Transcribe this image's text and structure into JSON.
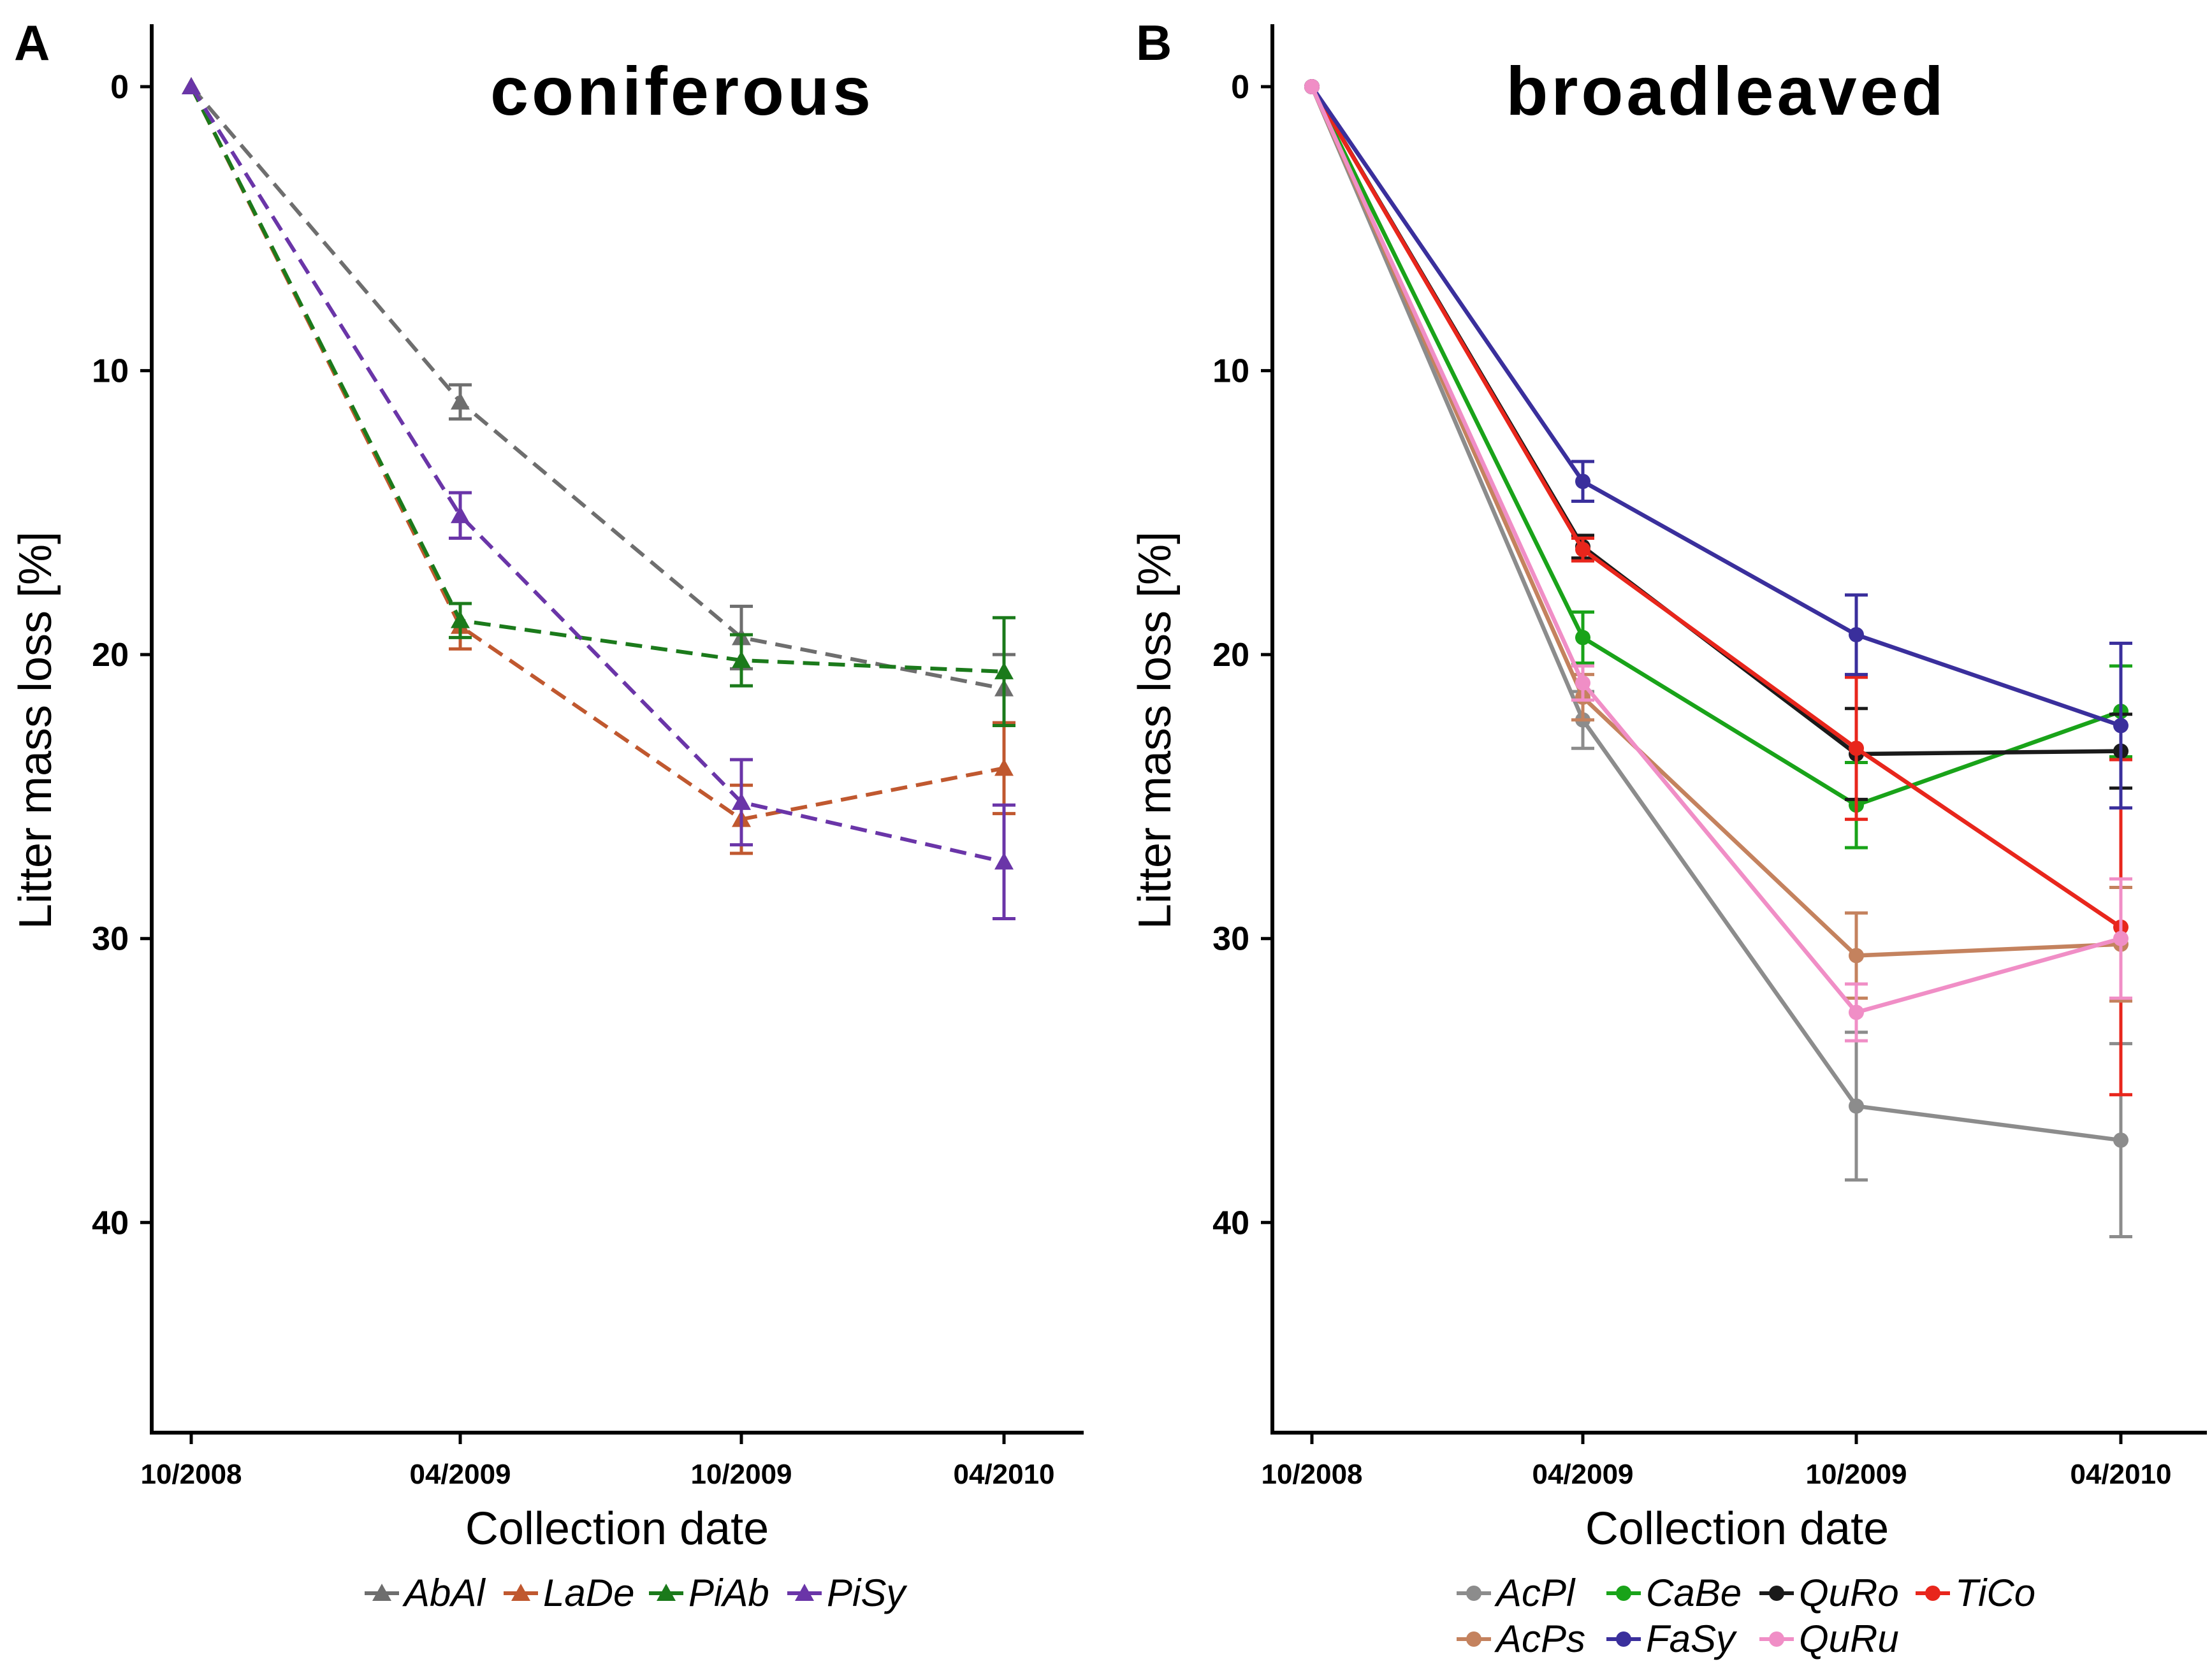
{
  "chart_data": [
    {
      "type": "line",
      "panel_label": "A",
      "title": "coniferous",
      "xlabel": "Collection date",
      "ylabel": "Litter mass loss [%]",
      "categories": [
        "10/2008",
        "04/2009",
        "10/2009",
        "04/2010"
      ],
      "yticks": [
        0,
        10,
        20,
        30,
        40
      ],
      "ylim": [
        -2.2,
        47.4
      ],
      "y_inverted": true,
      "grid": false,
      "marker": "triangle",
      "line_style": "dashed",
      "legend_position": "bottom",
      "series": [
        {
          "name": "AbAl",
          "color": "#6e6e6e",
          "values": [
            0,
            11.1,
            19.4,
            21.2
          ],
          "errors": [
            0,
            0.6,
            1.1,
            1.2
          ]
        },
        {
          "name": "LaDe",
          "color": "#c0582f",
          "values": [
            0,
            19.0,
            25.8,
            24.0
          ],
          "errors": [
            0,
            0.8,
            1.2,
            1.6
          ]
        },
        {
          "name": "PiAb",
          "color": "#1b7a1b",
          "values": [
            0,
            18.8,
            20.2,
            20.6
          ],
          "errors": [
            0,
            0.6,
            0.9,
            1.9
          ]
        },
        {
          "name": "PiSy",
          "color": "#6a35a8",
          "values": [
            0,
            15.1,
            25.2,
            27.3
          ],
          "errors": [
            0,
            0.8,
            1.5,
            2.0
          ]
        }
      ]
    },
    {
      "type": "line",
      "panel_label": "B",
      "title": "broadleaved",
      "xlabel": "Collection date",
      "ylabel": "Litter mass loss [%]",
      "categories": [
        "10/2008",
        "04/2009",
        "10/2009",
        "04/2010"
      ],
      "yticks": [
        0,
        10,
        20,
        30,
        40
      ],
      "ylim": [
        -2.2,
        47.4
      ],
      "y_inverted": true,
      "grid": false,
      "marker": "circle",
      "line_style": "solid",
      "legend_position": "bottom",
      "series": [
        {
          "name": "AcPl",
          "color": "#8c8c8c",
          "values": [
            0,
            22.3,
            35.9,
            37.1
          ],
          "errors": [
            0,
            1.0,
            2.6,
            3.4
          ]
        },
        {
          "name": "CaBe",
          "color": "#19a319",
          "values": [
            0,
            19.4,
            25.3,
            22.0
          ],
          "errors": [
            0,
            0.9,
            1.5,
            1.6
          ]
        },
        {
          "name": "QuRo",
          "color": "#1a1a1a",
          "values": [
            0,
            16.2,
            23.5,
            23.4
          ],
          "errors": [
            0,
            0.4,
            1.6,
            1.3
          ]
        },
        {
          "name": "TiCo",
          "color": "#e8261c",
          "values": [
            0,
            16.3,
            23.3,
            29.6
          ],
          "errors": [
            0,
            0.4,
            2.5,
            5.9
          ]
        },
        {
          "name": "AcPs",
          "color": "#c4825e",
          "values": [
            0,
            21.5,
            30.6,
            30.2
          ],
          "errors": [
            0,
            0.8,
            1.5,
            2.0
          ]
        },
        {
          "name": "FaSy",
          "color": "#3a2f9c",
          "values": [
            0,
            13.9,
            19.3,
            22.5
          ],
          "errors": [
            0,
            0.7,
            1.4,
            2.9
          ]
        },
        {
          "name": "QuRu",
          "color": "#f08ec6",
          "values": [
            0,
            21.0,
            32.6,
            30.0
          ],
          "errors": [
            0,
            0.6,
            1.0,
            2.1
          ]
        }
      ]
    }
  ]
}
